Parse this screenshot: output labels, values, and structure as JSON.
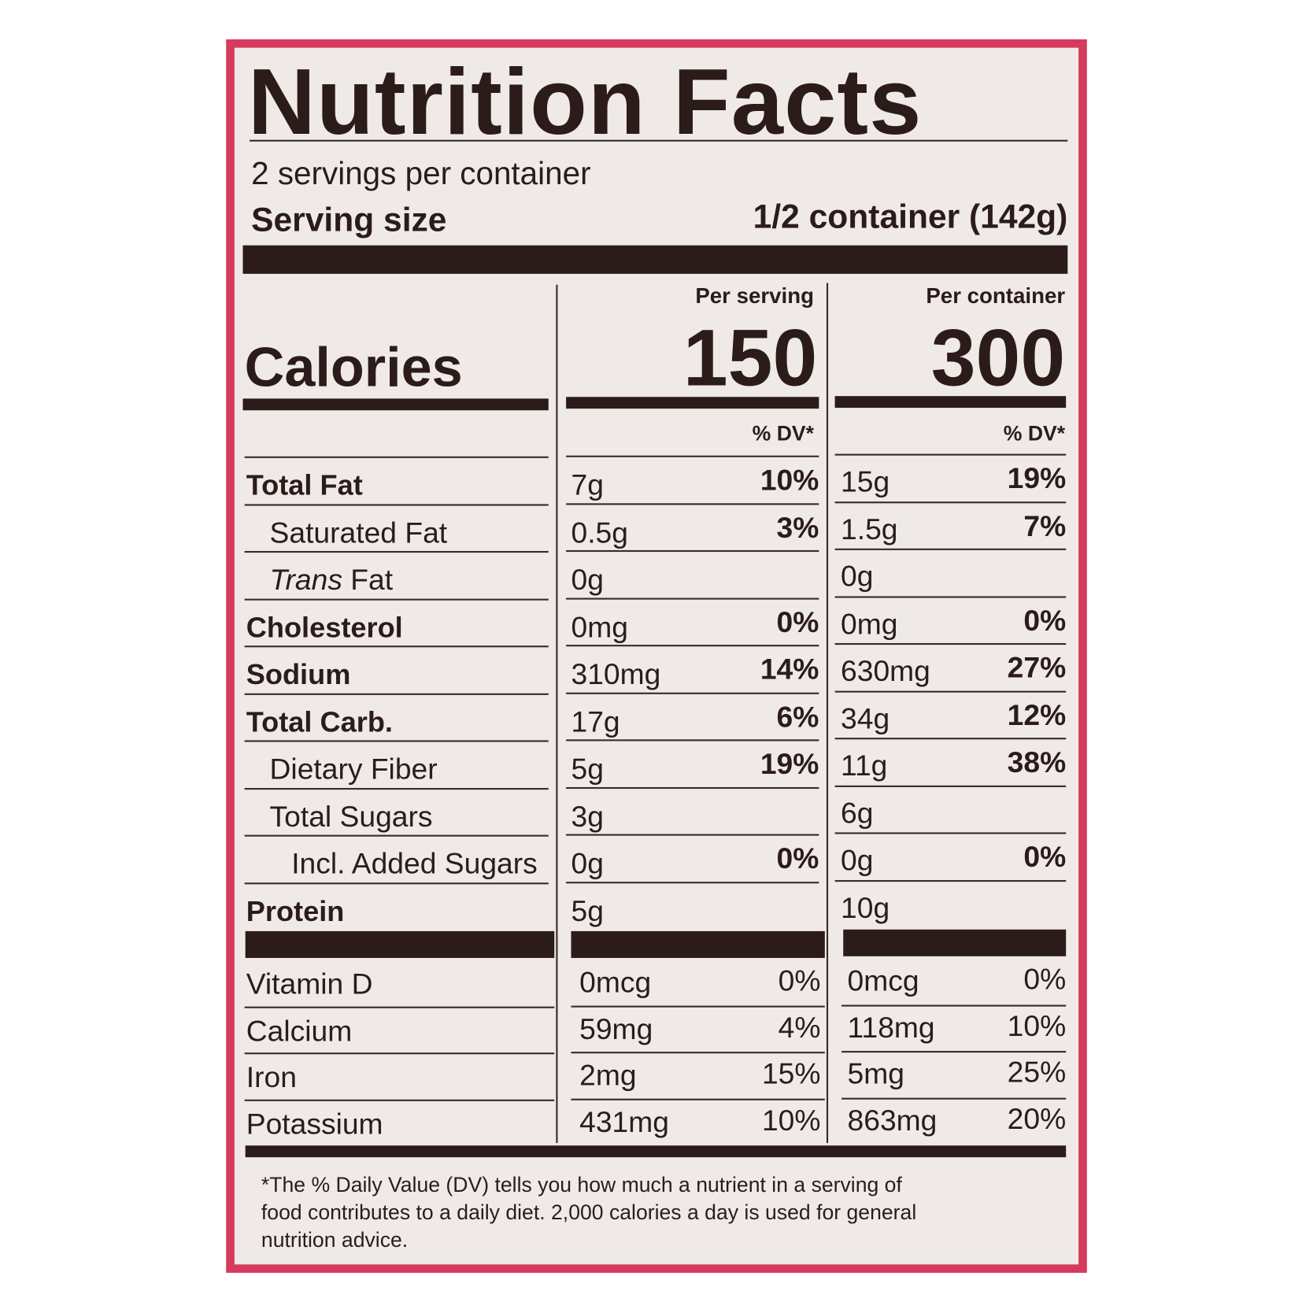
{
  "title": "Nutrition Facts",
  "servings_per_container": "2 servings per container",
  "serving_size_label": "Serving size",
  "serving_size_value": "1/2 container (142g)",
  "columns": {
    "per_serving": "Per serving",
    "per_container": "Per container",
    "dv_header": "% DV*"
  },
  "calories": {
    "label": "Calories",
    "per_serving": "150",
    "per_container": "300"
  },
  "nutrients": [
    {
      "label": "Total Fat",
      "bold": true,
      "indent": 0,
      "serving_amount": "7g",
      "serving_dv": "10%",
      "container_amount": "15g",
      "container_dv": "19%"
    },
    {
      "label": "Saturated Fat",
      "bold": false,
      "indent": 1,
      "serving_amount": "0.5g",
      "serving_dv": "3%",
      "container_amount": "1.5g",
      "container_dv": "7%"
    },
    {
      "label_italic": "Trans",
      "label": " Fat",
      "bold": false,
      "indent": 1,
      "serving_amount": "0g",
      "serving_dv": "",
      "container_amount": "0g",
      "container_dv": ""
    },
    {
      "label": "Cholesterol",
      "bold": true,
      "indent": 0,
      "serving_amount": "0mg",
      "serving_dv": "0%",
      "container_amount": "0mg",
      "container_dv": "0%"
    },
    {
      "label": "Sodium",
      "bold": true,
      "indent": 0,
      "serving_amount": "310mg",
      "serving_dv": "14%",
      "container_amount": "630mg",
      "container_dv": "27%"
    },
    {
      "label": "Total Carb.",
      "bold": true,
      "indent": 0,
      "serving_amount": "17g",
      "serving_dv": "6%",
      "container_amount": "34g",
      "container_dv": "12%"
    },
    {
      "label": "Dietary Fiber",
      "bold": false,
      "indent": 1,
      "serving_amount": "5g",
      "serving_dv": "19%",
      "container_amount": "11g",
      "container_dv": "38%"
    },
    {
      "label": "Total Sugars",
      "bold": false,
      "indent": 1,
      "serving_amount": "3g",
      "serving_dv": "",
      "container_amount": "6g",
      "container_dv": ""
    },
    {
      "label": "Incl. Added Sugars",
      "bold": false,
      "indent": 2,
      "serving_amount": "0g",
      "serving_dv": "0%",
      "container_amount": "0g",
      "container_dv": "0%"
    },
    {
      "label": "Protein",
      "bold": true,
      "indent": 0,
      "serving_amount": "5g",
      "serving_dv": "",
      "container_amount": "10g",
      "container_dv": ""
    }
  ],
  "vitamins": [
    {
      "label": "Vitamin D",
      "serving_amount": "0mcg",
      "serving_dv": "0%",
      "container_amount": "0mcg",
      "container_dv": "0%"
    },
    {
      "label": "Calcium",
      "serving_amount": "59mg",
      "serving_dv": "4%",
      "container_amount": "118mg",
      "container_dv": "10%"
    },
    {
      "label": "Iron",
      "serving_amount": "2mg",
      "serving_dv": "15%",
      "container_amount": "5mg",
      "container_dv": "25%"
    },
    {
      "label": "Potassium",
      "serving_amount": "431mg",
      "serving_dv": "10%",
      "container_amount": "863mg",
      "container_dv": "20%"
    }
  ],
  "footnote": [
    "*The % Daily Value (DV) tells you how much a nutrient in a serving of",
    "food contributes to a daily diet. 2,000 calories a day is used for general",
    "nutrition advice."
  ],
  "colors": {
    "frame": "#d63a5c",
    "panel": "#efeae8",
    "ink": "#2b1c1a"
  }
}
